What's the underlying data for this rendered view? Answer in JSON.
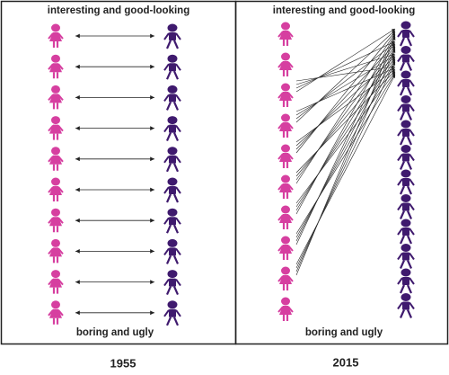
{
  "panels": [
    {
      "top_label": "interesting and good-looking",
      "bottom_label": "boring and ugly",
      "year": "1955"
    },
    {
      "top_label": "interesting and good-looking",
      "bottom_label": "boring and ugly",
      "year": "2015"
    }
  ]
}
